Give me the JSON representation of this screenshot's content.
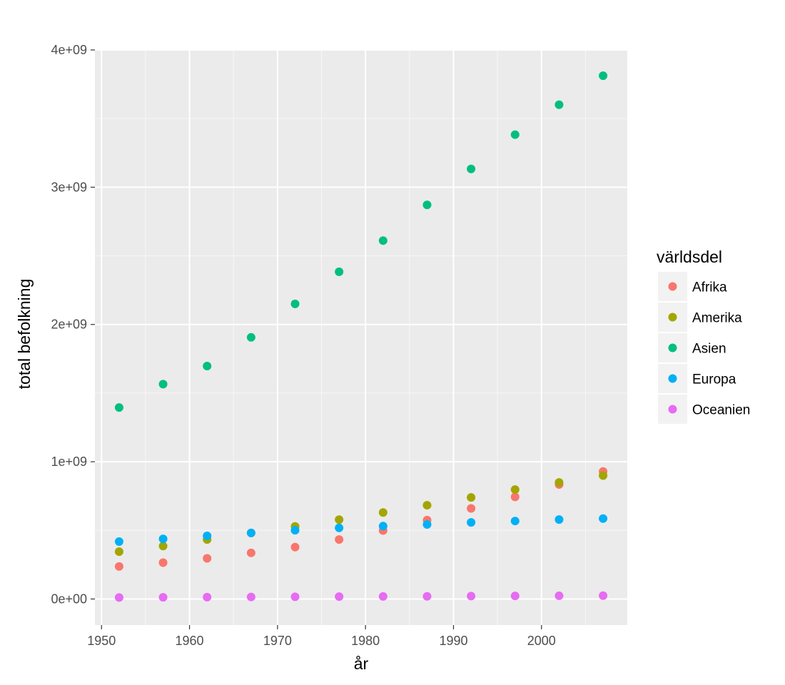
{
  "chart_data": {
    "type": "scatter",
    "title": "",
    "xlabel": "år",
    "ylabel": "total befolkning",
    "xlim": [
      1949.25,
      2009.75
    ],
    "ylim": [
      -190000000,
      4000000000
    ],
    "x_ticks": [
      1950,
      1960,
      1970,
      1980,
      1990,
      2000
    ],
    "x_tick_labels": [
      "1950",
      "1960",
      "1970",
      "1980",
      "1990",
      "2000"
    ],
    "y_ticks": [
      0,
      1000000000,
      2000000000,
      3000000000,
      4000000000
    ],
    "y_tick_labels": [
      "0e+00",
      "1e+09",
      "2e+09",
      "3e+09",
      "4e+09"
    ],
    "grid": true,
    "legend": {
      "title": "världsdel",
      "position": "right"
    },
    "x": [
      1952,
      1957,
      1962,
      1967,
      1972,
      1977,
      1982,
      1987,
      1992,
      1997,
      2002,
      2007
    ],
    "series": [
      {
        "name": "Afrika",
        "color": "#F8766D",
        "values": [
          237000000,
          265000000,
          296000000,
          336000000,
          378000000,
          433000000,
          499000000,
          575000000,
          660000000,
          744000000,
          834000000,
          929000000
        ]
      },
      {
        "name": "Amerika",
        "color": "#A3A500",
        "values": [
          345000000,
          386000000,
          433000000,
          481000000,
          529000000,
          578000000,
          630000000,
          683000000,
          740000000,
          797000000,
          849000000,
          899000000
        ]
      },
      {
        "name": "Asien",
        "color": "#00BF7D",
        "values": [
          1395000000,
          1565000000,
          1697000000,
          1906000000,
          2150000000,
          2384000000,
          2611000000,
          2871000000,
          3133000000,
          3383000000,
          3601000000,
          3812000000
        ]
      },
      {
        "name": "Europa",
        "color": "#00B0F6",
        "values": [
          418000000,
          438000000,
          460000000,
          481000000,
          501000000,
          518000000,
          531000000,
          543000000,
          558000000,
          568000000,
          579000000,
          586000000
        ]
      },
      {
        "name": "Oceanien",
        "color": "#E76BF3",
        "values": [
          10700000,
          11900000,
          13300000,
          14600000,
          16100000,
          17200000,
          18400000,
          19500000,
          20900000,
          22200000,
          23500000,
          24500000
        ]
      }
    ]
  }
}
